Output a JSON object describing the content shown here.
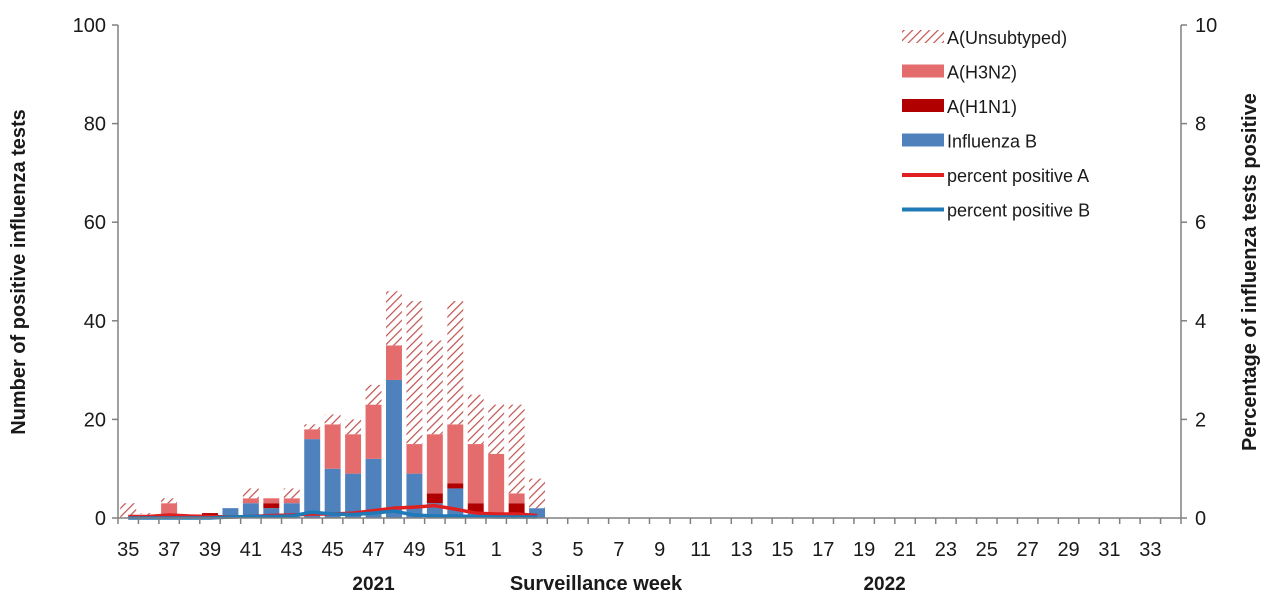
{
  "chart_data": {
    "type": "bar",
    "stacked": true,
    "xlabel": "Surveillance  week",
    "ylabel": "Number of positive influenza tests",
    "y2label": "Percentage of influenza tests positive",
    "ylim": [
      0,
      100
    ],
    "y2lim": [
      0,
      10
    ],
    "yticks": [
      "0",
      "20",
      "40",
      "60",
      "80",
      "100"
    ],
    "y2ticks": [
      "0",
      "2",
      "4",
      "6",
      "8",
      "10"
    ],
    "year_labels": [
      {
        "label": "2021",
        "at_week": "47"
      },
      {
        "label": "2022",
        "at_week": "20"
      }
    ],
    "legend_position": "top-right",
    "grid": false,
    "categories": [
      "35",
      "36",
      "37",
      "38",
      "39",
      "40",
      "41",
      "42",
      "43",
      "44",
      "45",
      "46",
      "47",
      "48",
      "49",
      "50",
      "51",
      "52",
      "1",
      "2",
      "3",
      "4",
      "5",
      "6",
      "7",
      "8",
      "9",
      "10",
      "11",
      "12",
      "13",
      "14",
      "15",
      "16",
      "17",
      "18",
      "19",
      "20",
      "21",
      "22",
      "23",
      "24",
      "25",
      "26",
      "27",
      "28",
      "29",
      "30",
      "31",
      "32",
      "33",
      "34"
    ],
    "series": [
      {
        "name": "Influenza B",
        "kind": "bar",
        "color": "#4f81bd",
        "values": [
          0,
          0,
          0,
          0,
          0,
          2,
          3,
          2,
          3,
          16,
          10,
          9,
          12,
          28,
          9,
          3,
          6,
          1,
          0,
          1,
          2,
          0,
          0,
          0,
          0,
          0,
          0,
          0,
          0,
          0,
          0,
          0,
          0,
          0,
          0,
          0,
          0,
          0,
          0,
          0,
          0,
          0,
          0,
          0,
          0,
          0,
          0,
          0,
          0,
          0,
          0,
          0
        ]
      },
      {
        "name": "A(H1N1)",
        "kind": "bar",
        "color": "#b00000",
        "values": [
          0,
          0,
          0,
          0,
          1,
          0,
          0,
          1,
          0,
          0,
          0,
          0,
          0,
          0,
          0,
          2,
          1,
          2,
          1,
          2,
          0,
          0,
          0,
          0,
          0,
          0,
          0,
          0,
          0,
          0,
          0,
          0,
          0,
          0,
          0,
          0,
          0,
          0,
          0,
          0,
          0,
          0,
          0,
          0,
          0,
          0,
          0,
          0,
          0,
          0,
          0,
          0
        ]
      },
      {
        "name": "A(H3N2)",
        "kind": "bar",
        "color": "#e46c6c",
        "values": [
          0,
          0,
          3,
          0,
          0,
          0,
          1,
          1,
          1,
          2,
          9,
          8,
          11,
          7,
          6,
          12,
          12,
          12,
          12,
          2,
          0,
          0,
          0,
          0,
          0,
          0,
          0,
          0,
          0,
          0,
          0,
          0,
          0,
          0,
          0,
          0,
          0,
          0,
          0,
          0,
          0,
          0,
          0,
          0,
          0,
          0,
          0,
          0,
          0,
          0,
          0,
          0
        ]
      },
      {
        "name": "A(Unsubtyped)",
        "kind": "bar",
        "pattern": "hatched",
        "color": "#c0504d",
        "values": [
          3,
          1,
          1,
          0,
          0,
          0,
          2,
          0,
          2,
          1,
          2,
          3,
          4,
          11,
          29,
          19,
          25,
          10,
          10,
          18,
          6,
          0,
          0,
          0,
          0,
          0,
          0,
          0,
          0,
          0,
          0,
          0,
          0,
          0,
          0,
          0,
          0,
          0,
          0,
          0,
          0,
          0,
          0,
          0,
          0,
          0,
          0,
          0,
          0,
          0,
          0,
          0
        ]
      },
      {
        "name": "percent positive A",
        "kind": "line",
        "axis": "right",
        "color": "#e02020",
        "values": [
          0.03,
          0.03,
          0.06,
          0.04,
          0.03,
          0.02,
          0.03,
          0.05,
          0.06,
          0.08,
          0.08,
          0.1,
          0.15,
          0.2,
          0.22,
          0.25,
          0.18,
          0.1,
          0.08,
          0.08,
          0.05,
          null,
          null,
          null,
          null,
          null,
          null,
          null,
          null,
          null,
          null,
          null,
          null,
          null,
          null,
          null,
          null,
          null,
          null,
          null,
          null,
          null,
          null,
          null,
          null,
          null,
          null,
          null,
          null,
          null,
          null,
          null
        ]
      },
      {
        "name": "percent positive B",
        "kind": "line",
        "axis": "right",
        "color": "#1f7ab8",
        "values": [
          0,
          0,
          0,
          0,
          0,
          0.02,
          0.03,
          0.03,
          0.04,
          0.12,
          0.08,
          0.07,
          0.1,
          0.14,
          0.06,
          0.04,
          0.04,
          0.03,
          0.02,
          0.02,
          0.02,
          null,
          null,
          null,
          null,
          null,
          null,
          null,
          null,
          null,
          null,
          null,
          null,
          null,
          null,
          null,
          null,
          null,
          null,
          null,
          null,
          null,
          null,
          null,
          null,
          null,
          null,
          null,
          null,
          null,
          null,
          null
        ]
      }
    ]
  }
}
